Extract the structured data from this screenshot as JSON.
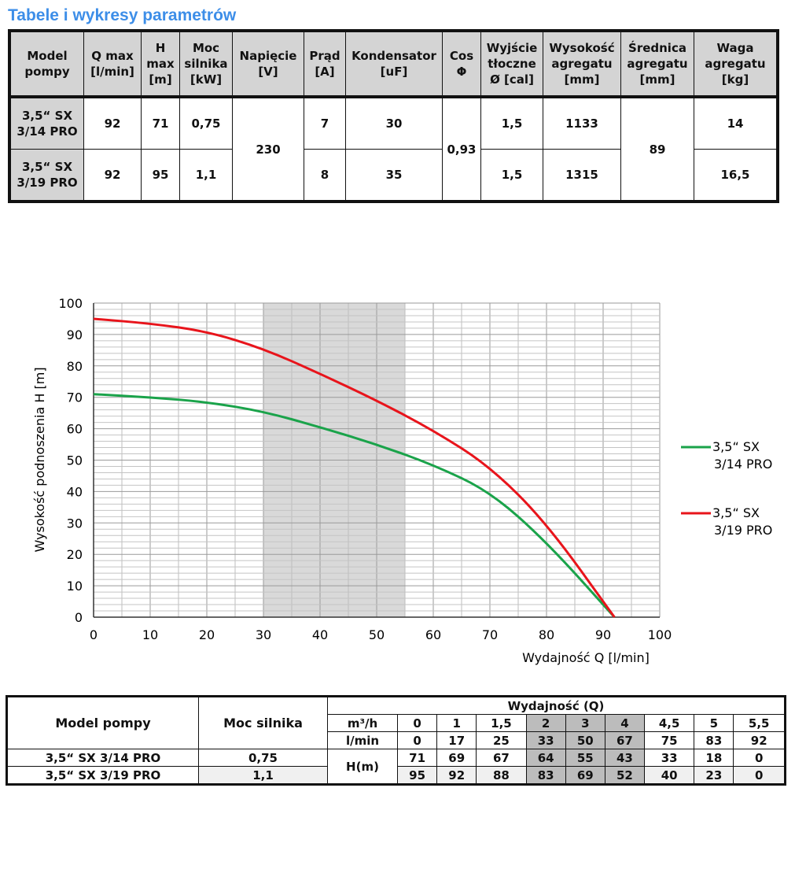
{
  "title": "Tabele i wykresy parametrów",
  "table1": {
    "headers": [
      "Model pompy",
      "Q max [l/min]",
      "H max [m]",
      "Moc silnika [kW]",
      "Napięcie [V]",
      "Prąd [A]",
      "Kondensator [uF]",
      "Cos Φ",
      "Wyjście tłoczne Ø [cal]",
      "Wysokość agregatu [mm]",
      "Średnica agregatu [mm]",
      "Waga agregatu [kg]"
    ],
    "rows": [
      {
        "model": "3,5“ SX 3/14 PRO",
        "qmax": "92",
        "hmax": "71",
        "moc": "0,75",
        "napiecie": "230",
        "prad": "7",
        "kond": "30",
        "cos": "0,93",
        "wyjscie": "1,5",
        "wysokosc": "1133",
        "srednica": "89",
        "waga": "14"
      },
      {
        "model": "3,5“ SX 3/19 PRO",
        "qmax": "92",
        "hmax": "95",
        "moc": "1,1",
        "prad": "8",
        "kond": "35",
        "wyjscie": "1,5",
        "wysokosc": "1315",
        "waga": "16,5"
      }
    ]
  },
  "chart_data": {
    "type": "line",
    "xlabel": "Wydajność Q [l/min]",
    "ylabel": "Wysokość podnoszenia H [m]",
    "xlim": [
      0,
      100
    ],
    "ylim": [
      0,
      100
    ],
    "xticks": [
      "0",
      "10",
      "20",
      "30",
      "40",
      "50",
      "60",
      "70",
      "80",
      "90",
      "100"
    ],
    "yticks": [
      "0",
      "10",
      "20",
      "30",
      "40",
      "50",
      "60",
      "70",
      "80",
      "90",
      "100"
    ],
    "grid": true,
    "highlight_range": [
      30,
      55
    ],
    "legend_position": "right",
    "series": [
      {
        "name": "3,5“ SX 3/14 PRO",
        "legend_lines": [
          "3,5“ SX",
          "3/14 PRO"
        ],
        "color": "#1aa34a",
        "x": [
          0,
          10,
          20,
          30,
          40,
          50,
          60,
          70,
          80,
          92
        ],
        "y": [
          71,
          70,
          68.5,
          65.5,
          60.5,
          55,
          48.5,
          40,
          24,
          0
        ]
      },
      {
        "name": "3,5“ SX 3/19 PRO",
        "legend_lines": [
          "3,5“ SX",
          "3/19 PRO"
        ],
        "color": "#e8141b",
        "x": [
          0,
          10,
          20,
          30,
          40,
          50,
          60,
          70,
          80,
          92
        ],
        "y": [
          95,
          93.5,
          91,
          85.5,
          77.5,
          69,
          59.5,
          48,
          30,
          0
        ]
      }
    ]
  },
  "table2": {
    "model_header": "Model pompy",
    "moc_header": "Moc silnika",
    "wyd_header": "Wydajność (Q)",
    "m3h_label": "m³/h",
    "lmin_label": "l/min",
    "h_label": "H(m)",
    "m3h": [
      "0",
      "1",
      "1,5",
      "2",
      "3",
      "4",
      "4,5",
      "5",
      "5,5"
    ],
    "lmin": [
      "0",
      "17",
      "25",
      "33",
      "50",
      "67",
      "75",
      "83",
      "92"
    ],
    "rows": [
      {
        "model": "3,5“ SX 3/14 PRO",
        "moc": "0,75",
        "h": [
          "71",
          "69",
          "67",
          "64",
          "55",
          "43",
          "33",
          "18",
          "0"
        ]
      },
      {
        "model": "3,5“ SX 3/19 PRO",
        "moc": "1,1",
        "h": [
          "95",
          "92",
          "88",
          "83",
          "69",
          "52",
          "40",
          "23",
          "0"
        ]
      }
    ]
  }
}
